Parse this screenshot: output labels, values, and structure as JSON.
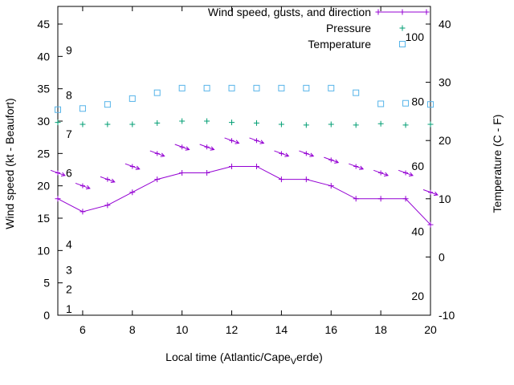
{
  "figure": {
    "background": "#ffffff",
    "legend_labels": [
      "Wind speed, gusts, and direction",
      "Pressure",
      "Temperature"
    ],
    "y_left_title": "Wind speed (kt - Beaufort)",
    "y_right_title": "Temperature (C - F)",
    "x_title_prefix": "Local time (Atlantic/Cape",
    "x_title_sub": "V",
    "x_title_suffix": "erde)",
    "x_ticks": [
      6,
      8,
      10,
      12,
      14,
      16,
      18,
      20
    ],
    "y_left_ticks": [
      0,
      5,
      10,
      15,
      20,
      25,
      30,
      35,
      40,
      45
    ],
    "y_right_ticks": [
      -10,
      0,
      10,
      20,
      30,
      40
    ],
    "beaufort_labels": [
      {
        "t": "9",
        "kt": 41
      },
      {
        "t": "8",
        "kt": 34
      },
      {
        "t": "7",
        "kt": 28
      },
      {
        "t": "6",
        "kt": 22
      },
      {
        "t": "4",
        "kt": 11
      },
      {
        "t": "3",
        "kt": 7
      },
      {
        "t": "2",
        "kt": 4
      },
      {
        "t": "1",
        "kt": 1
      }
    ],
    "fahrenheit_labels": [
      {
        "t": "100",
        "c": 37.8
      },
      {
        "t": "80",
        "c": 26.7
      },
      {
        "t": "60",
        "c": 15.6
      },
      {
        "t": "40",
        "c": 4.4
      },
      {
        "t": "20",
        "c": -6.7
      }
    ]
  },
  "chart_data": {
    "type": "line",
    "title": "",
    "xlabel": "Local time (Atlantic/Cape_Verde)",
    "ylabel_left": "Wind speed (kt - Beaufort)",
    "ylabel_right": "Temperature (C - F)",
    "x_range": [
      5,
      20
    ],
    "y_left_range": [
      0,
      45
    ],
    "y_right_range": [
      -10,
      40
    ],
    "grid": false,
    "legend_position": "top-right-inside",
    "x": [
      5,
      6,
      7,
      8,
      9,
      10,
      11,
      12,
      13,
      14,
      15,
      16,
      17,
      18,
      19,
      20
    ],
    "series": [
      {
        "name": "Wind speed",
        "axis": "left",
        "marker": "plus",
        "line": true,
        "color": "#9400d3",
        "values": [
          18,
          16,
          17,
          19,
          21,
          22,
          22,
          23,
          23,
          21,
          21,
          20,
          18,
          18,
          18,
          14
        ]
      },
      {
        "name": "Wind gusts and direction",
        "axis": "left",
        "marker": "arrow",
        "line": false,
        "arrow_angle_deg": 20,
        "color": "#9400d3",
        "values": [
          22,
          20,
          21,
          23,
          25,
          26,
          26,
          27,
          27,
          25,
          25,
          24,
          23,
          22,
          22,
          19
        ]
      },
      {
        "name": "Pressure",
        "axis": "left",
        "marker": "plus",
        "line": false,
        "color": "#009e73",
        "values": [
          29.8,
          29.5,
          29.5,
          29.5,
          29.7,
          30.0,
          30.0,
          29.8,
          29.7,
          29.5,
          29.4,
          29.5,
          29.4,
          29.6,
          29.4,
          29.5
        ]
      },
      {
        "name": "Temperature",
        "axis": "right",
        "marker": "square",
        "line": false,
        "color": "#56b4e9",
        "values": [
          25.3,
          25.5,
          26.2,
          27.2,
          28.2,
          29.0,
          29.0,
          29.0,
          29.0,
          29.0,
          29.0,
          29.0,
          28.2,
          26.3,
          26.4,
          26.2
        ]
      }
    ]
  }
}
